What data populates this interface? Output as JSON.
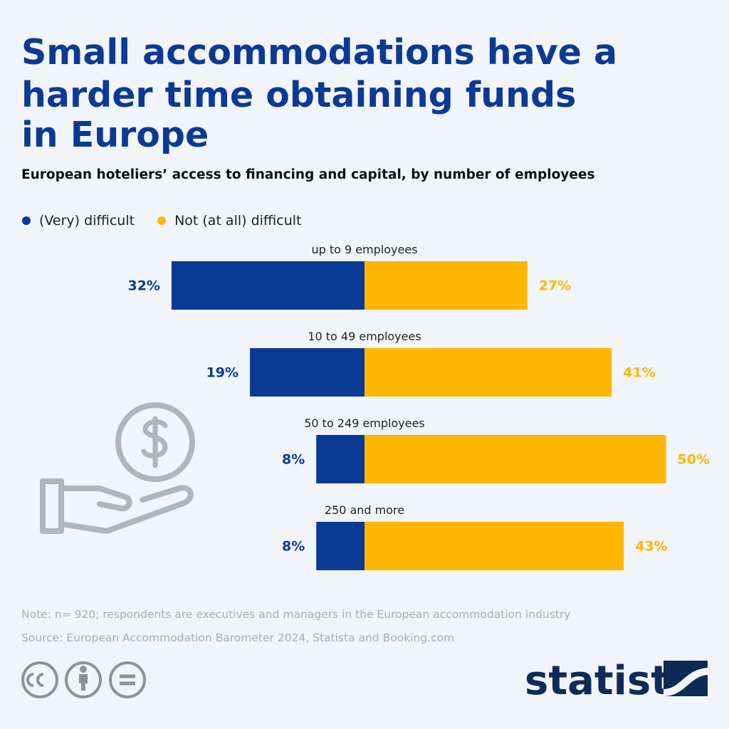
{
  "chart_data": {
    "type": "diverging-bar",
    "title": [
      "Small accommodations have a",
      "harder time obtaining funds",
      "in Europe"
    ],
    "subtitle": "European hoteliers’ access to financing and capital, by number of employees",
    "categories": [
      "up to 9 employees",
      "10 to 49 employees",
      "50 to 249 employees",
      "250 and more"
    ],
    "series": [
      {
        "name": "(Very) difficult",
        "color": "#0b3a94",
        "values": [
          32,
          19,
          8,
          8
        ],
        "value_labels": [
          "32%",
          "19%",
          "8%",
          "8%"
        ]
      },
      {
        "name": "Not (at all) difficult",
        "color": "#ffb600",
        "values": [
          27,
          41,
          50,
          43
        ],
        "value_labels": [
          "27%",
          "41%",
          "50%",
          "43%"
        ]
      }
    ],
    "note": "Note: n= 920; respondents are executives and managers in the European accommodation industry",
    "source": "Source: European Accommodation Barometer 2024, Statista and Booking.com",
    "brand": "statista"
  }
}
